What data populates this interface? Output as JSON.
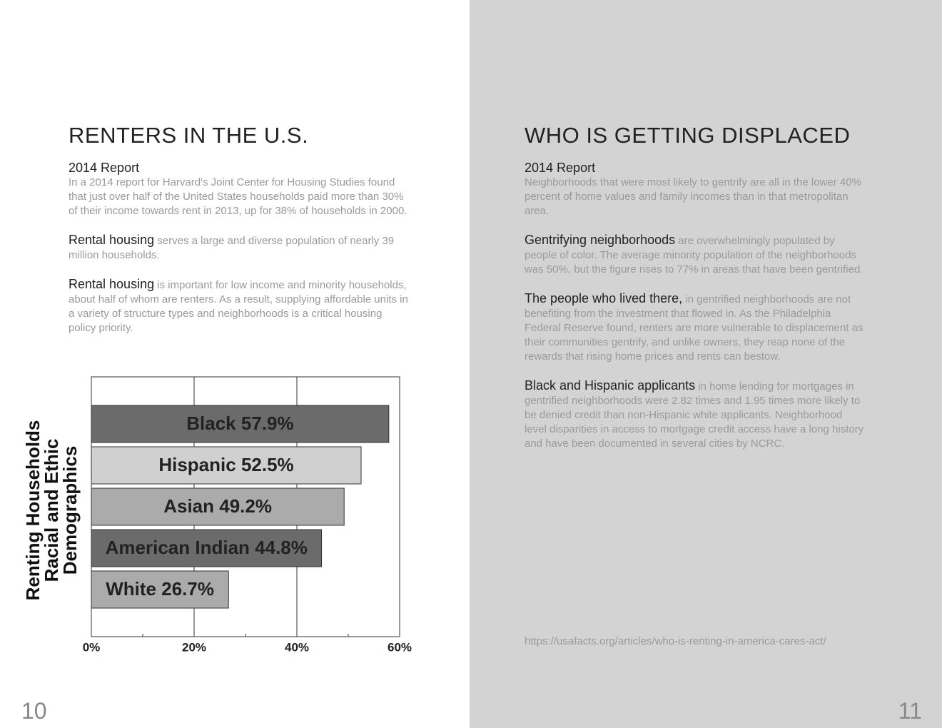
{
  "left_page": {
    "title": "RENTERS IN THE U.S.",
    "subtitle": "2014 Report",
    "paragraphs": [
      {
        "text": "In a 2014 report for Harvard's Joint Center for Housing Studies found that just over half of the United States households paid more than 30% of their income towards rent in 2013, up for 38% of households in 2000."
      },
      {
        "lead": "Rental housing",
        "text": " serves a large and diverse population of nearly 39 million households."
      },
      {
        "lead": "Rental housing",
        "text": " is important for low income and minority households, about half of whom are renters. As a result, supplying affordable units in a variety of structure types and neighborhoods is a critical housing policy priority."
      }
    ],
    "page_number": "10"
  },
  "chart_data": {
    "type": "hbar",
    "ylabel": [
      "Renting Households",
      "Racial and Ethic",
      "Demographics"
    ],
    "categories": [
      "Black",
      "Hispanic",
      "Asian",
      "American Indian",
      "White"
    ],
    "values": [
      57.9,
      52.5,
      49.2,
      44.8,
      26.7
    ],
    "value_labels": [
      "57.9%",
      "52.5%",
      "49.2%",
      "44.8%",
      "26.7%"
    ],
    "colors": [
      "#6b6b6b",
      "#d0d0d0",
      "#ababab",
      "#6b6b6b",
      "#ababab"
    ],
    "xlim": [
      0,
      60
    ],
    "xticks": [
      {
        "value": 0,
        "label": "0%"
      },
      {
        "value": 20,
        "label": "20%"
      },
      {
        "value": 40,
        "label": "40%"
      },
      {
        "value": 60,
        "label": "60%"
      }
    ],
    "minor_xticks": [
      10,
      30,
      50
    ],
    "grid": true
  },
  "right_page": {
    "title": "WHO IS GETTING DISPLACED",
    "subtitle": "2014 Report",
    "paragraphs": [
      {
        "text": "Neighborhoods that were most likely to gentrify are all in the lower 40% percent of home values and family incomes than in that metropolitan area."
      },
      {
        "lead": "Gentrifying neighborhoods",
        "text": " are overwhelmingly populated by people of color. The average minority population of the neighborhoods was 50%, but the figure rises to 77% in areas that have been gentrified."
      },
      {
        "lead": "The people who lived there,",
        "text": " in gentrified neighborhoods are not benefiting from the investment that flowed in. As the Philadelphia Federal Reserve found, renters are more vulnerable to displacement as their communities gentrify, and unlike owners, they reap none of the rewards that rising home prices and rents can bestow."
      },
      {
        "lead": "Black and Hispanic applicants",
        "text": " in home lending for mortgages in gentrified neighborhoods were 2.82 times and 1.95 times more likely to be denied credit than non-Hispanic white applicants. Neighborhood level disparities in access to mortgage credit access have a long history and have been documented in several cities by NCRC."
      }
    ],
    "source": "https://usafacts.org/articles/who-is-renting-in-america-cares-act/",
    "page_number": "11"
  }
}
